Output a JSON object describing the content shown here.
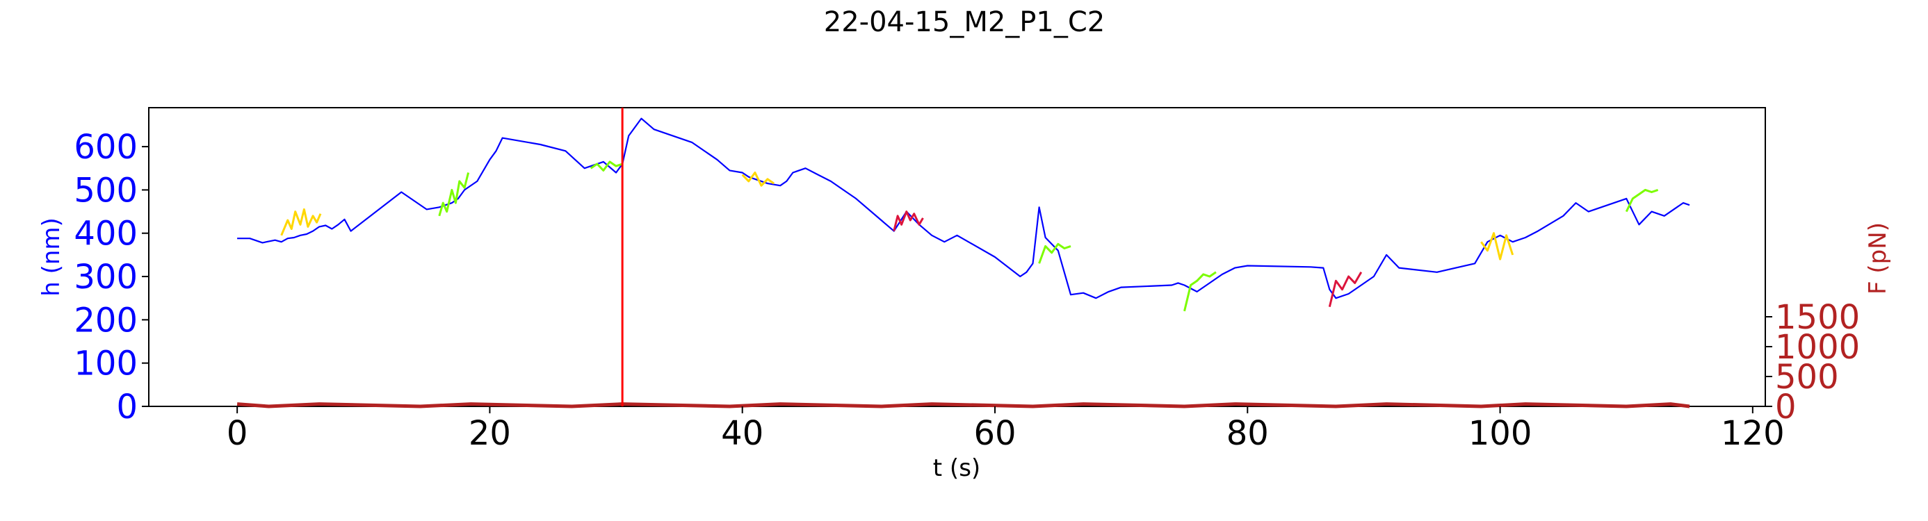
{
  "chart_data": {
    "type": "line",
    "title": "22-04-15_M2_P1_C2",
    "xlabel": "t (s)",
    "ylabel": "h (nm)",
    "y2label": "F (pN)",
    "xlim": [
      -7,
      121
    ],
    "ylim": [
      0,
      690
    ],
    "y2lim": [
      0,
      5000
    ],
    "xticks": [
      0,
      20,
      40,
      60,
      80,
      100,
      120
    ],
    "yticks": [
      0,
      100,
      200,
      300,
      400,
      500,
      600
    ],
    "y2ticks": [
      0,
      500,
      1000,
      1500
    ],
    "grid": false,
    "colors": {
      "height": "#0000ff",
      "force": "#b22222",
      "marker": "#ff0000",
      "yellow": "#ffd700",
      "green": "#7cfc00",
      "red": "#dc143c"
    },
    "marker_x": 30.5,
    "series": [
      {
        "color": "blue",
        "x": [
          0,
          1,
          2,
          3,
          3.5,
          4,
          4.5,
          5,
          5.5,
          6,
          6.5,
          7,
          7.5,
          8,
          8.5,
          9,
          13,
          15,
          16,
          17,
          17.5,
          18,
          19,
          20,
          20.5,
          21,
          24,
          26,
          27.5,
          29,
          30,
          30.5,
          31,
          32,
          33,
          36,
          38,
          39,
          40,
          40.5,
          41,
          42,
          43,
          43.5,
          44,
          45,
          46,
          47,
          48,
          49,
          51,
          52,
          53,
          54,
          55,
          56,
          57,
          60,
          62,
          62.5,
          63,
          63.5,
          64,
          65,
          66,
          67,
          68,
          69,
          70,
          74,
          74.5,
          75,
          76,
          77,
          78,
          79,
          80,
          85,
          86,
          86.5,
          87,
          88,
          89,
          90,
          91,
          92,
          95,
          98,
          99,
          100,
          101,
          102,
          103,
          105,
          106,
          107,
          110,
          111,
          112,
          113,
          114,
          114.5,
          115
        ],
        "y": [
          388,
          388,
          378,
          384,
          380,
          388,
          390,
          395,
          398,
          405,
          415,
          418,
          410,
          420,
          432,
          405,
          495,
          455,
          460,
          470,
          480,
          500,
          520,
          570,
          590,
          620,
          605,
          590,
          550,
          565,
          540,
          560,
          625,
          665,
          640,
          610,
          570,
          545,
          540,
          530,
          525,
          515,
          510,
          520,
          540,
          550,
          535,
          520,
          500,
          480,
          430,
          405,
          450,
          420,
          395,
          380,
          395,
          345,
          300,
          310,
          330,
          460,
          390,
          360,
          258,
          262,
          250,
          265,
          275,
          280,
          285,
          280,
          265,
          285,
          305,
          320,
          325,
          322,
          320,
          270,
          250,
          260,
          280,
          300,
          350,
          320,
          310,
          330,
          380,
          395,
          380,
          390,
          405,
          440,
          470,
          450,
          480,
          420,
          450,
          440,
          460,
          470,
          465
        ]
      },
      {
        "color": "yellow",
        "x": [
          3.5,
          4,
          4.3,
          4.6,
          5,
          5.3,
          5.6,
          6,
          6.3,
          6.6
        ],
        "y": [
          395,
          430,
          410,
          450,
          420,
          455,
          415,
          440,
          425,
          445
        ]
      },
      {
        "color": "green",
        "x": [
          16,
          16.3,
          16.6,
          17,
          17.3,
          17.6,
          18,
          18.3
        ],
        "y": [
          440,
          470,
          450,
          500,
          470,
          520,
          505,
          540
        ]
      },
      {
        "color": "green",
        "x": [
          28,
          28.5,
          29,
          29.5,
          30,
          30.5
        ],
        "y": [
          550,
          560,
          545,
          565,
          555,
          560
        ]
      },
      {
        "color": "yellow",
        "x": [
          40,
          40.5,
          41,
          41.5,
          42,
          42.5
        ],
        "y": [
          535,
          520,
          540,
          510,
          525,
          515
        ]
      },
      {
        "color": "red",
        "x": [
          52,
          52.3,
          52.6,
          53,
          53.3,
          53.6,
          54,
          54.3
        ],
        "y": [
          405,
          440,
          420,
          450,
          430,
          445,
          420,
          435
        ]
      },
      {
        "color": "green",
        "x": [
          63.5,
          64,
          64.5,
          65,
          65.5,
          66
        ],
        "y": [
          330,
          370,
          355,
          375,
          365,
          370
        ]
      },
      {
        "color": "green",
        "x": [
          75,
          75.5,
          76,
          76.5,
          77,
          77.5
        ],
        "y": [
          220,
          280,
          290,
          305,
          300,
          310
        ]
      },
      {
        "color": "red",
        "x": [
          86.5,
          87,
          87.5,
          88,
          88.5,
          89
        ],
        "y": [
          230,
          290,
          270,
          300,
          285,
          310
        ]
      },
      {
        "color": "yellow",
        "x": [
          98.5,
          99,
          99.5,
          100,
          100.5,
          101
        ],
        "y": [
          380,
          360,
          400,
          340,
          395,
          350
        ]
      },
      {
        "color": "green",
        "x": [
          110,
          110.5,
          111,
          111.5,
          112,
          112.5
        ],
        "y": [
          450,
          480,
          490,
          500,
          495,
          500
        ]
      }
    ],
    "force_series": {
      "x": [
        0,
        2.5,
        6.5,
        14.5,
        18.5,
        26.5,
        30.5,
        39,
        43,
        51,
        55,
        63,
        67,
        75,
        79,
        87,
        91,
        98.5,
        102,
        110,
        113.5,
        115
      ],
      "y": [
        40,
        0,
        40,
        0,
        40,
        0,
        40,
        0,
        40,
        0,
        40,
        0,
        40,
        0,
        40,
        0,
        40,
        0,
        40,
        0,
        40,
        0
      ]
    }
  }
}
